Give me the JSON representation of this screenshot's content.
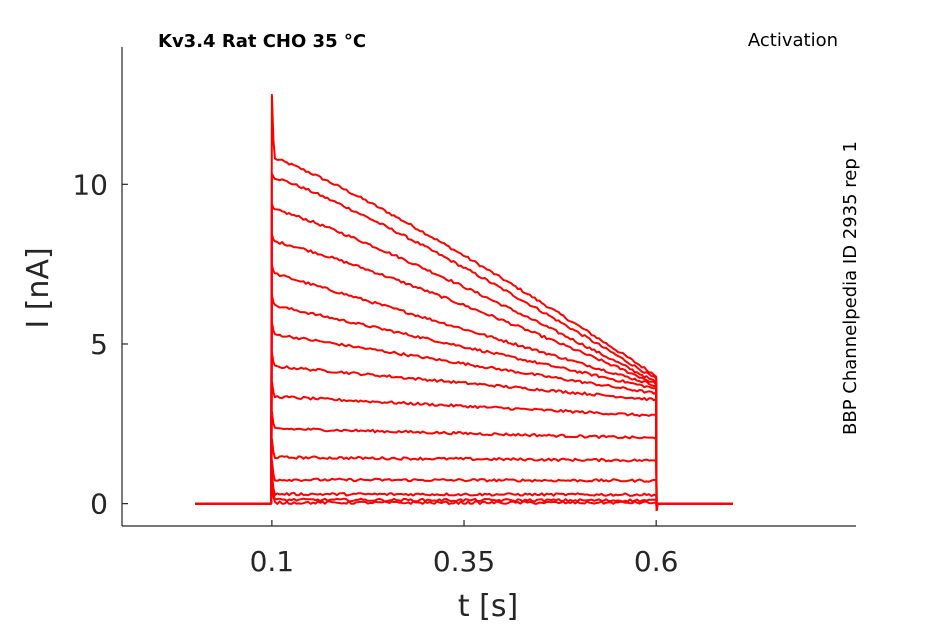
{
  "chart_data": {
    "type": "line",
    "title": "Kv3.4  Rat  CHO  35 °C",
    "subtitle": "Activation",
    "side_note": "BBP Channelpedia ID 2935 rep 1",
    "xlabel": "t [s]",
    "ylabel": "I [nA]",
    "xlim": [
      -0.095,
      0.86
    ],
    "ylim": [
      -0.7,
      14.3
    ],
    "x_ticks": [
      0.1,
      0.35,
      0.6
    ],
    "x_tick_labels": [
      "0.1",
      "0.35",
      "0.6"
    ],
    "y_ticks": [
      0,
      5,
      10
    ],
    "y_tick_labels": [
      "0",
      "5",
      "10"
    ],
    "grid": false,
    "line_color": "#ff0000",
    "pulse": {
      "t_start": 0.1,
      "t_end": 0.6,
      "t_begin": 0.0,
      "t_stop": 0.7
    },
    "peak_transient": 12.8,
    "series": [
      {
        "start": 10.8,
        "end": 4.0
      },
      {
        "start": 10.2,
        "end": 3.9
      },
      {
        "start": 9.2,
        "end": 3.8
      },
      {
        "start": 8.2,
        "end": 3.75
      },
      {
        "start": 7.2,
        "end": 3.7
      },
      {
        "start": 6.2,
        "end": 3.6
      },
      {
        "start": 5.3,
        "end": 3.45
      },
      {
        "start": 4.3,
        "end": 3.25
      },
      {
        "start": 3.35,
        "end": 2.75
      },
      {
        "start": 2.35,
        "end": 2.05
      },
      {
        "start": 1.45,
        "end": 1.35
      },
      {
        "start": 0.75,
        "end": 0.72
      },
      {
        "start": 0.3,
        "end": 0.28
      },
      {
        "start": 0.12,
        "end": 0.1
      },
      {
        "start": 0.03,
        "end": 0.03
      }
    ]
  }
}
